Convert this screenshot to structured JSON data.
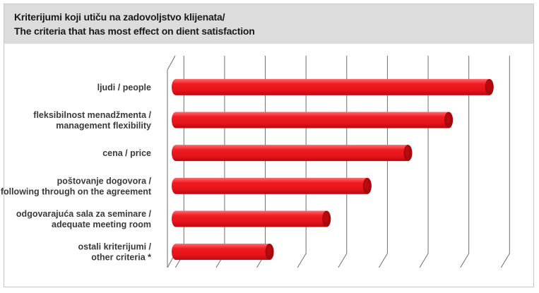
{
  "chart_data": {
    "type": "bar",
    "orientation": "horizontal",
    "style": "3d-cylinder",
    "title": [
      "Kriterijumi koji utiču na zadovoljstvo klijenata/",
      "The criteria that has most effect on dient satisfaction"
    ],
    "categories": [
      [
        "ljudi / people"
      ],
      [
        "fleksibilnost menadžmenta /",
        "management flexibility"
      ],
      [
        "cena / price"
      ],
      [
        "poštovanje dogovora /",
        "following through on the agreement"
      ],
      [
        "odgovarajuća sala za seminare /",
        "adequate meeting room"
      ],
      [
        "ostali kriterijumi /",
        "other criteria *"
      ]
    ],
    "values": [
      7.7,
      6.7,
      5.7,
      4.7,
      3.7,
      2.3
    ],
    "xlim": [
      0,
      8
    ],
    "grid": true,
    "axis_tick_labels_shown": false,
    "bar_color": "#e8141b",
    "bar_end_color": "#a8070c"
  }
}
